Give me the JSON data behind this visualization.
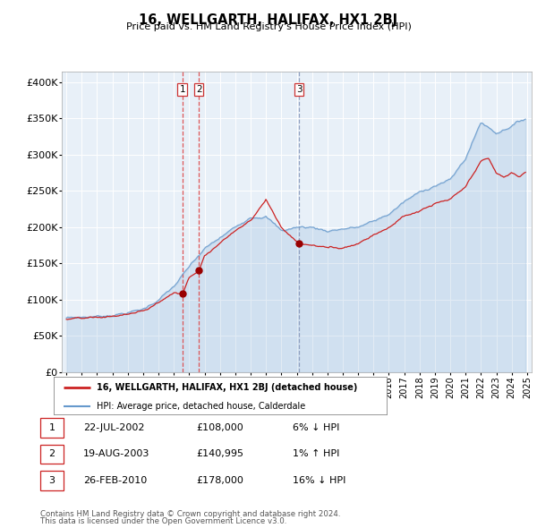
{
  "title": "16, WELLGARTH, HALIFAX, HX1 2BJ",
  "subtitle": "Price paid vs. HM Land Registry's House Price Index (HPI)",
  "ylabel_values": [
    "£0",
    "£50K",
    "£100K",
    "£150K",
    "£200K",
    "£250K",
    "£300K",
    "£350K",
    "£400K"
  ],
  "yticks": [
    0,
    50000,
    100000,
    150000,
    200000,
    250000,
    300000,
    350000,
    400000
  ],
  "xlim_start": 1994.7,
  "xlim_end": 2025.3,
  "ylim": [
    0,
    415000
  ],
  "transactions": [
    {
      "id": 1,
      "date_x": 2002.55,
      "price": 108000,
      "label": "22-JUL-2002",
      "price_str": "£108,000",
      "pct": "6% ↓ HPI"
    },
    {
      "id": 2,
      "date_x": 2003.63,
      "price": 140995,
      "label": "19-AUG-2003",
      "price_str": "£140,995",
      "pct": "1% ↑ HPI"
    },
    {
      "id": 3,
      "date_x": 2010.16,
      "price": 178000,
      "label": "26-FEB-2010",
      "price_str": "£178,000",
      "pct": "16% ↓ HPI"
    }
  ],
  "vline_color_1_2": "#dd4444",
  "vline_color_3": "#8899bb",
  "dot_color": "#990000",
  "red_line_color": "#cc2222",
  "blue_line_color": "#6699cc",
  "plot_bg_color": "#e8f0f8",
  "legend_red_label": "16, WELLGARTH, HALIFAX, HX1 2BJ (detached house)",
  "legend_blue_label": "HPI: Average price, detached house, Calderdale",
  "footer_line1": "Contains HM Land Registry data © Crown copyright and database right 2024.",
  "footer_line2": "This data is licensed under the Open Government Licence v3.0.",
  "background_color": "#ffffff",
  "grid_color": "#ffffff",
  "hpi_anchors_t": [
    1995.0,
    1996.0,
    1997.0,
    1998.0,
    1999.0,
    2000.0,
    2001.0,
    2002.0,
    2003.0,
    2004.0,
    2005.0,
    2006.0,
    2007.0,
    2008.0,
    2009.0,
    2010.0,
    2011.0,
    2012.0,
    2013.0,
    2014.0,
    2015.0,
    2016.0,
    2017.0,
    2018.0,
    2019.0,
    2020.0,
    2021.0,
    2022.0,
    2023.0,
    2024.0,
    2024.9
  ],
  "hpi_anchors_v": [
    75000,
    76000,
    77000,
    79000,
    82000,
    87000,
    100000,
    118000,
    145000,
    170000,
    185000,
    200000,
    215000,
    215000,
    195000,
    200000,
    200000,
    195000,
    198000,
    200000,
    208000,
    218000,
    235000,
    248000,
    258000,
    265000,
    295000,
    345000,
    330000,
    340000,
    350000
  ],
  "red_anchors_t": [
    1995.0,
    1996.0,
    1997.0,
    1998.0,
    1999.0,
    2000.0,
    2001.0,
    2002.0,
    2002.55,
    2003.0,
    2003.63,
    2004.0,
    2005.0,
    2006.0,
    2007.0,
    2008.0,
    2009.0,
    2010.0,
    2010.16,
    2011.0,
    2012.0,
    2013.0,
    2014.0,
    2015.0,
    2016.0,
    2017.0,
    2018.0,
    2019.0,
    2020.0,
    2021.0,
    2022.0,
    2022.5,
    2023.0,
    2023.5,
    2024.0,
    2024.5,
    2024.9
  ],
  "red_anchors_v": [
    73000,
    74000,
    75000,
    77000,
    80000,
    84000,
    96000,
    110000,
    108000,
    130000,
    140995,
    162000,
    178000,
    196000,
    210000,
    238000,
    200000,
    180000,
    178000,
    175000,
    172000,
    172000,
    178000,
    190000,
    200000,
    215000,
    222000,
    232000,
    238000,
    255000,
    290000,
    295000,
    275000,
    268000,
    275000,
    270000,
    275000
  ]
}
